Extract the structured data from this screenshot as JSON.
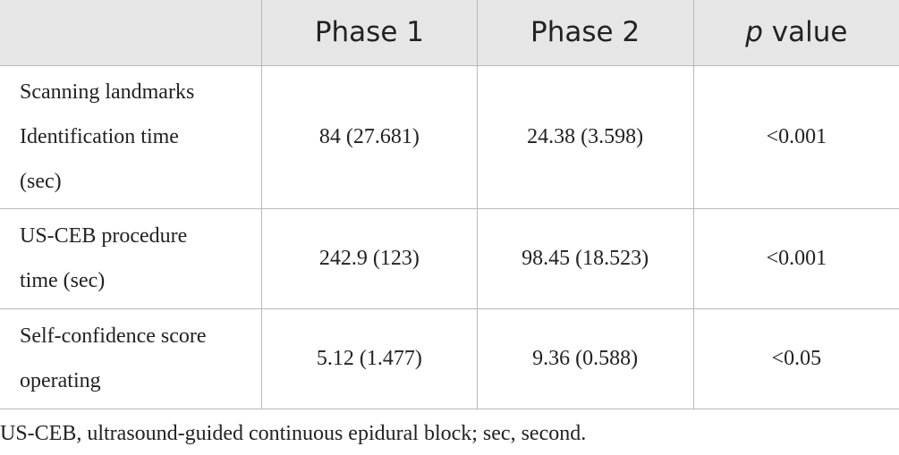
{
  "table": {
    "headers": [
      "Phase 1",
      "Phase 2"
    ],
    "p_header": {
      "symbol": "p",
      "text": "value"
    },
    "rows": [
      {
        "label": [
          "Scanning landmarks",
          "Identification time",
          "(sec)"
        ],
        "cells": [
          "84 (27.681)",
          "24.38 (3.598)",
          "<0.001"
        ]
      },
      {
        "label": [
          "US-CEB procedure",
          "time (sec)"
        ],
        "cells": [
          "242.9 (123)",
          "98.45 (18.523)",
          "<0.001"
        ]
      },
      {
        "label": [
          "Self-confidence score",
          "operating"
        ],
        "cells": [
          "5.12 (1.477)",
          "9.36 (0.588)",
          "<0.05"
        ]
      }
    ]
  },
  "footnote": "US-CEB, ultrasound-guided continuous epidural block; sec, second."
}
